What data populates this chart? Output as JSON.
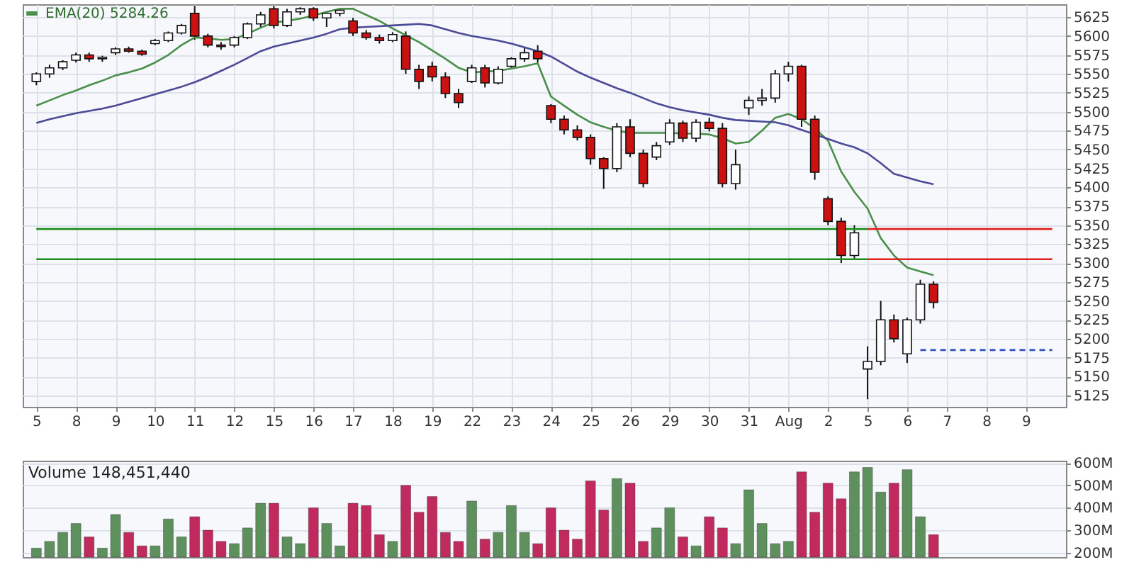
{
  "chart_data": [
    {
      "type": "candlestick",
      "legend": "top left",
      "grid": true,
      "categories": [
        "5",
        null,
        null,
        "8",
        null,
        null,
        "9",
        null,
        null,
        "10",
        null,
        null,
        "11",
        null,
        null,
        "12",
        null,
        null,
        "15",
        null,
        null,
        "16",
        null,
        null,
        "17",
        null,
        null,
        "18",
        null,
        null,
        "19",
        null,
        null,
        "22",
        null,
        null,
        "23",
        null,
        null,
        "24",
        null,
        null,
        "25",
        null,
        null,
        "26",
        null,
        null,
        "29",
        null,
        null,
        "30",
        null,
        null,
        "31",
        null,
        null,
        "Aug",
        null,
        null,
        "2",
        null,
        null,
        "5",
        null,
        null,
        "6",
        null,
        null,
        "7",
        null,
        null,
        "8",
        null,
        null,
        "9",
        null,
        null
      ],
      "ohlc": [
        [
          5540,
          5552,
          5535,
          5550
        ],
        [
          5550,
          5562,
          5545,
          5558
        ],
        [
          5558,
          5568,
          5555,
          5566
        ],
        [
          5568,
          5578,
          5565,
          5575
        ],
        [
          5575,
          5578,
          5566,
          5570
        ],
        [
          5570,
          5574,
          5566,
          5572
        ],
        [
          5578,
          5585,
          5575,
          5583
        ],
        [
          5583,
          5586,
          5578,
          5580
        ],
        [
          5580,
          5582,
          5574,
          5576
        ],
        [
          5590,
          5596,
          5588,
          5594
        ],
        [
          5594,
          5606,
          5592,
          5604
        ],
        [
          5604,
          5616,
          5602,
          5614
        ],
        [
          5630,
          5640,
          5595,
          5600
        ],
        [
          5600,
          5603,
          5585,
          5588
        ],
        [
          5588,
          5592,
          5582,
          5586
        ],
        [
          5588,
          5600,
          5585,
          5598
        ],
        [
          5598,
          5618,
          5596,
          5616
        ],
        [
          5616,
          5632,
          5612,
          5628
        ],
        [
          5636,
          5640,
          5610,
          5614
        ],
        [
          5614,
          5636,
          5612,
          5632
        ],
        [
          5632,
          5638,
          5628,
          5636
        ],
        [
          5636,
          5638,
          5620,
          5624
        ],
        [
          5624,
          5632,
          5612,
          5630
        ],
        [
          5630,
          5636,
          5626,
          5634
        ],
        [
          5620,
          5624,
          5600,
          5604
        ],
        [
          5604,
          5608,
          5595,
          5598
        ],
        [
          5598,
          5602,
          5590,
          5594
        ],
        [
          5594,
          5605,
          5592,
          5602
        ],
        [
          5600,
          5606,
          5550,
          5556
        ],
        [
          5556,
          5562,
          5530,
          5540
        ],
        [
          5560,
          5566,
          5540,
          5546
        ],
        [
          5546,
          5552,
          5518,
          5524
        ],
        [
          5524,
          5530,
          5505,
          5512
        ],
        [
          5540,
          5562,
          5538,
          5558
        ],
        [
          5558,
          5562,
          5532,
          5538
        ],
        [
          5538,
          5560,
          5536,
          5556
        ],
        [
          5560,
          5572,
          5558,
          5570
        ],
        [
          5570,
          5584,
          5566,
          5578
        ],
        [
          5580,
          5588,
          5565,
          5570
        ],
        [
          5508,
          5510,
          5485,
          5490
        ],
        [
          5490,
          5495,
          5470,
          5476
        ],
        [
          5476,
          5482,
          5462,
          5466
        ],
        [
          5466,
          5470,
          5430,
          5438
        ],
        [
          5438,
          5440,
          5398,
          5425
        ],
        [
          5425,
          5485,
          5420,
          5480
        ],
        [
          5480,
          5490,
          5440,
          5445
        ],
        [
          5445,
          5450,
          5400,
          5405
        ],
        [
          5440,
          5460,
          5436,
          5455
        ],
        [
          5460,
          5490,
          5456,
          5485
        ],
        [
          5485,
          5488,
          5460,
          5465
        ],
        [
          5465,
          5490,
          5460,
          5486
        ],
        [
          5486,
          5492,
          5474,
          5478
        ],
        [
          5478,
          5485,
          5400,
          5405
        ],
        [
          5405,
          5450,
          5397,
          5430
        ],
        [
          5505,
          5520,
          5496,
          5515
        ],
        [
          5515,
          5530,
          5508,
          5518
        ],
        [
          5518,
          5555,
          5512,
          5550
        ],
        [
          5550,
          5566,
          5540,
          5560
        ],
        [
          5560,
          5562,
          5480,
          5490
        ],
        [
          5490,
          5495,
          5410,
          5420
        ],
        [
          5385,
          5388,
          5350,
          5355
        ],
        [
          5355,
          5360,
          5300,
          5310
        ],
        [
          5310,
          5350,
          5306,
          5340
        ],
        [
          5160,
          5190,
          5120,
          5170
        ],
        [
          5170,
          5250,
          5165,
          5225
        ],
        [
          5225,
          5232,
          5195,
          5200
        ],
        [
          5180,
          5228,
          5168,
          5225
        ],
        [
          5225,
          5278,
          5220,
          5272
        ],
        [
          5272,
          5276,
          5240,
          5248
        ],
        null,
        null,
        null,
        null,
        null,
        null,
        null,
        null,
        null
      ],
      "colors": [
        "#ffffff",
        "#ffffff",
        "#ffffff",
        "#ffffff",
        "#cc1111",
        "#ffffff",
        "#ffffff",
        "#cc1111",
        "#cc1111",
        "#ffffff",
        "#ffffff",
        "#ffffff",
        "#cc1111",
        "#cc1111",
        "#cc1111",
        "#ffffff",
        "#ffffff",
        "#ffffff",
        "#cc1111",
        "#ffffff",
        "#ffffff",
        "#cc1111",
        "#ffffff",
        "#ffffff",
        "#cc1111",
        "#cc1111",
        "#cc1111",
        "#ffffff",
        "#cc1111",
        "#cc1111",
        "#cc1111",
        "#cc1111",
        "#cc1111",
        "#ffffff",
        "#cc1111",
        "#ffffff",
        "#ffffff",
        "#ffffff",
        "#cc1111",
        "#cc1111",
        "#cc1111",
        "#cc1111",
        "#cc1111",
        "#cc1111",
        "#ffffff",
        "#cc1111",
        "#cc1111",
        "#ffffff",
        "#ffffff",
        "#cc1111",
        "#ffffff",
        "#cc1111",
        "#cc1111",
        "#ffffff",
        "#ffffff",
        "#ffffff",
        "#ffffff",
        "#ffffff",
        "#cc1111",
        "#cc1111",
        "#cc1111",
        "#cc1111",
        "#ffffff",
        "#ffffff",
        "#ffffff",
        "#cc1111",
        "#ffffff",
        "#ffffff",
        "#cc1111",
        null,
        null,
        null,
        null,
        null,
        null,
        null,
        null,
        null
      ],
      "series": [
        {
          "name": "EMA(20) 5284.26",
          "type": "line",
          "color": "#4a8f4a",
          "values": [
            5508,
            5515,
            5522,
            5528,
            5535,
            5541,
            5548,
            5552,
            5557,
            5565,
            5575,
            5588,
            5598,
            5597,
            5595,
            5596,
            5603,
            5611,
            5618,
            5620,
            5623,
            5627,
            5632,
            5636,
            5636,
            5628,
            5620,
            5610,
            5601,
            5592,
            5581,
            5570,
            5558,
            5552,
            5553,
            5554,
            5557,
            5560,
            5564,
            5520,
            5508,
            5496,
            5486,
            5480,
            5475,
            5472,
            5472,
            5472,
            5472,
            5471,
            5471,
            5470,
            5465,
            5458,
            5460,
            5475,
            5492,
            5497,
            5490,
            5478,
            5462,
            5421,
            5394,
            5372,
            5333,
            5310,
            5294,
            5289,
            5284,
            null,
            null,
            null,
            null,
            null,
            null,
            null,
            null,
            null
          ]
        },
        {
          "type": "line",
          "color": "#4a4a96",
          "values": [
            5485,
            5490,
            5494,
            5498,
            5501,
            5504,
            5508,
            5513,
            5518,
            5523,
            5528,
            5533,
            5539,
            5546,
            5554,
            5562,
            5571,
            5580,
            5586,
            5590,
            5594,
            5598,
            5603,
            5609,
            5611,
            5612,
            5613,
            5614,
            5615,
            5616,
            5614,
            5609,
            5604,
            5600,
            5597,
            5594,
            5590,
            5585,
            5580,
            5573,
            5563,
            5553,
            5545,
            5538,
            5531,
            5525,
            5518,
            5511,
            5506,
            5502,
            5499,
            5496,
            5492,
            5489,
            5488,
            5487,
            5486,
            5482,
            5476,
            5470,
            5464,
            5458,
            5453,
            5445,
            5432,
            5418,
            5413,
            5408,
            5404,
            null,
            null,
            null,
            null,
            null,
            null,
            null,
            null,
            null
          ]
        },
        {
          "type": "line",
          "color": "#1c8c1c",
          "values": [
            5345,
            5345,
            5345,
            5345,
            5345,
            5345,
            5345,
            5345,
            5345,
            5345,
            5345,
            5345,
            5345,
            5345,
            5345,
            5345,
            5345,
            5345,
            5345,
            5345,
            5345,
            5345,
            5345,
            5345,
            5345,
            5345,
            5345,
            5345,
            5345,
            5345,
            5345,
            5345,
            5345,
            5345,
            5345,
            5345,
            5345,
            5345,
            5345,
            5345,
            5345,
            5345,
            5345,
            5345,
            5345,
            5345,
            5345,
            5345,
            5345,
            5345,
            5345,
            5345,
            5345,
            5345,
            5345,
            5345,
            5345,
            5345,
            5345,
            5345,
            5345,
            5345,
            5345,
            5345,
            null,
            null,
            null,
            null,
            null,
            null,
            null,
            null,
            null,
            null,
            null,
            null,
            null,
            null
          ]
        },
        {
          "type": "line",
          "color": "#1c8c1c",
          "values": [
            5305,
            5305,
            5305,
            5305,
            5305,
            5305,
            5305,
            5305,
            5305,
            5305,
            5305,
            5305,
            5305,
            5305,
            5305,
            5305,
            5305,
            5305,
            5305,
            5305,
            5305,
            5305,
            5305,
            5305,
            5305,
            5305,
            5305,
            5305,
            5305,
            5305,
            5305,
            5305,
            5305,
            5305,
            5305,
            5305,
            5305,
            5305,
            5305,
            5305,
            5305,
            5305,
            5305,
            5305,
            5305,
            5305,
            5305,
            5305,
            5305,
            5305,
            5305,
            5305,
            5305,
            5305,
            5305,
            5305,
            5305,
            5305,
            5305,
            5305,
            5305,
            5305,
            5305,
            5305,
            null,
            null,
            null,
            null,
            null,
            null,
            null,
            null,
            null,
            null,
            null,
            null,
            null,
            null
          ]
        },
        {
          "type": "line",
          "color": "#e02020",
          "values": [
            null,
            null,
            null,
            null,
            null,
            null,
            null,
            null,
            null,
            null,
            null,
            null,
            null,
            null,
            null,
            null,
            null,
            null,
            null,
            null,
            null,
            null,
            null,
            null,
            null,
            null,
            null,
            null,
            null,
            null,
            null,
            null,
            null,
            null,
            null,
            null,
            null,
            null,
            null,
            null,
            null,
            null,
            null,
            null,
            null,
            null,
            null,
            null,
            null,
            null,
            null,
            null,
            null,
            null,
            null,
            null,
            null,
            null,
            null,
            null,
            null,
            null,
            null,
            5345,
            5345,
            5345,
            5345,
            5345,
            5345,
            5345,
            5345,
            5345,
            5345,
            5345,
            5345,
            5345,
            5345,
            5345
          ]
        },
        {
          "type": "line",
          "color": "#e02020",
          "values": [
            null,
            null,
            null,
            null,
            null,
            null,
            null,
            null,
            null,
            null,
            null,
            null,
            null,
            null,
            null,
            null,
            null,
            null,
            null,
            null,
            null,
            null,
            null,
            null,
            null,
            null,
            null,
            null,
            null,
            null,
            null,
            null,
            null,
            null,
            null,
            null,
            null,
            null,
            null,
            null,
            null,
            null,
            null,
            null,
            null,
            null,
            null,
            null,
            null,
            null,
            null,
            null,
            null,
            null,
            null,
            null,
            null,
            null,
            null,
            null,
            null,
            null,
            null,
            5305,
            5305,
            5305,
            5305,
            5305,
            5305,
            5305,
            5305,
            5305,
            5305,
            5305,
            5305,
            5305,
            5305,
            5305
          ]
        },
        {
          "type": "line",
          "color": "#3050c0",
          "line_style": "dashed",
          "values": [
            null,
            null,
            null,
            null,
            null,
            null,
            null,
            null,
            null,
            null,
            null,
            null,
            null,
            null,
            null,
            null,
            null,
            null,
            null,
            null,
            null,
            null,
            null,
            null,
            null,
            null,
            null,
            null,
            null,
            null,
            null,
            null,
            null,
            null,
            null,
            null,
            null,
            null,
            null,
            null,
            null,
            null,
            null,
            null,
            null,
            null,
            null,
            null,
            null,
            null,
            null,
            null,
            null,
            null,
            null,
            null,
            null,
            null,
            null,
            null,
            null,
            null,
            null,
            null,
            null,
            null,
            null,
            5185,
            5185,
            5185,
            5185,
            5185,
            5185,
            5185,
            5185,
            5185,
            5185,
            5185
          ]
        }
      ],
      "ylim": [
        5110,
        5642
      ],
      "yticks": [
        5125,
        5150,
        5175,
        5200,
        5225,
        5250,
        5275,
        5300,
        5325,
        5350,
        5375,
        5400,
        5425,
        5450,
        5475,
        5500,
        5525,
        5550,
        5575,
        5600,
        5625
      ]
    },
    {
      "type": "bar",
      "title": "Volume 148,451,440",
      "grid": true,
      "tick_labels": "y",
      "categories": [
        null,
        null,
        null,
        null,
        null,
        null,
        null,
        null,
        null,
        null,
        null,
        null,
        null,
        null,
        null,
        null,
        null,
        null,
        null,
        null,
        null,
        null,
        null,
        null,
        null,
        null,
        null,
        null,
        null,
        null,
        null,
        null,
        null,
        null,
        null,
        null,
        null,
        null,
        null,
        null,
        null,
        null,
        null,
        null,
        null,
        null,
        null,
        null,
        null,
        null,
        null,
        null,
        null,
        null,
        null,
        null,
        null,
        null,
        null,
        null,
        null,
        null,
        null,
        null,
        null,
        null,
        null,
        null,
        null,
        null,
        null,
        null,
        null,
        null,
        null,
        null,
        null,
        null
      ],
      "values": [
        220,
        250,
        290,
        330,
        270,
        220,
        370,
        290,
        230,
        230,
        350,
        270,
        360,
        300,
        250,
        240,
        310,
        420,
        420,
        270,
        240,
        400,
        330,
        230,
        420,
        410,
        280,
        250,
        500,
        380,
        450,
        290,
        250,
        430,
        260,
        290,
        410,
        290,
        240,
        400,
        300,
        260,
        520,
        390,
        530,
        510,
        250,
        310,
        400,
        270,
        230,
        360,
        310,
        240,
        480,
        330,
        240,
        250,
        560,
        380,
        510,
        440,
        560,
        580,
        470,
        510,
        570,
        360,
        280,
        null,
        null,
        null,
        null,
        null,
        null,
        null,
        null,
        null
      ],
      "colors": [
        "#5e905e",
        "#5e905e",
        "#5e905e",
        "#5e905e",
        "#c02a5c",
        "#5e905e",
        "#5e905e",
        "#c02a5c",
        "#c02a5c",
        "#5e905e",
        "#5e905e",
        "#5e905e",
        "#c02a5c",
        "#c02a5c",
        "#c02a5c",
        "#5e905e",
        "#5e905e",
        "#5e905e",
        "#c02a5c",
        "#5e905e",
        "#5e905e",
        "#c02a5c",
        "#5e905e",
        "#5e905e",
        "#c02a5c",
        "#c02a5c",
        "#c02a5c",
        "#5e905e",
        "#c02a5c",
        "#c02a5c",
        "#c02a5c",
        "#c02a5c",
        "#c02a5c",
        "#5e905e",
        "#c02a5c",
        "#5e905e",
        "#5e905e",
        "#5e905e",
        "#c02a5c",
        "#c02a5c",
        "#c02a5c",
        "#c02a5c",
        "#c02a5c",
        "#c02a5c",
        "#5e905e",
        "#c02a5c",
        "#c02a5c",
        "#5e905e",
        "#5e905e",
        "#c02a5c",
        "#5e905e",
        "#c02a5c",
        "#c02a5c",
        "#5e905e",
        "#5e905e",
        "#5e905e",
        "#5e905e",
        "#5e905e",
        "#c02a5c",
        "#c02a5c",
        "#c02a5c",
        "#c02a5c",
        "#5e905e",
        "#5e905e",
        "#5e905e",
        "#c02a5c",
        "#5e905e",
        "#5e905e",
        "#c02a5c",
        null,
        null,
        null,
        null,
        null,
        null,
        null,
        null,
        null
      ],
      "ylim": [
        180,
        610
      ],
      "yticks": [
        {
          "value": 200,
          "label": "200M"
        },
        {
          "value": 300,
          "label": "300M"
        },
        {
          "value": 400,
          "label": "400M"
        },
        {
          "value": 500,
          "label": "500M"
        },
        {
          "value": 600,
          "label": "600M"
        }
      ]
    }
  ]
}
